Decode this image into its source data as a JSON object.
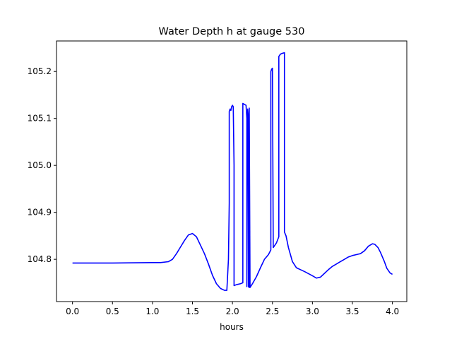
{
  "chart_data": {
    "type": "line",
    "title": "Water Depth h at gauge 530",
    "xlabel": "hours",
    "ylabel": "",
    "xlim": [
      -0.2,
      4.18
    ],
    "ylim": [
      104.71,
      105.265
    ],
    "xticks": [
      0.0,
      0.5,
      1.0,
      1.5,
      2.0,
      2.5,
      3.0,
      3.5,
      4.0
    ],
    "xtick_labels": [
      "0.0",
      "0.5",
      "1.0",
      "1.5",
      "2.0",
      "2.5",
      "3.0",
      "3.5",
      "4.0"
    ],
    "yticks": [
      104.8,
      104.9,
      105.0,
      105.1,
      105.2
    ],
    "ytick_labels": [
      "104.8",
      "104.9",
      "105.0",
      "105.1",
      "105.2"
    ],
    "grid": false,
    "series": [
      {
        "color": "#0000ff",
        "x": [
          0.0,
          0.5,
          1.0,
          1.1,
          1.2,
          1.25,
          1.3,
          1.35,
          1.4,
          1.45,
          1.5,
          1.55,
          1.6,
          1.65,
          1.7,
          1.75,
          1.8,
          1.85,
          1.9,
          1.93,
          1.95,
          1.96,
          1.96,
          1.97,
          1.98,
          1.99,
          2.0,
          2.01,
          2.02,
          2.02,
          2.05,
          2.1,
          2.13,
          2.13,
          2.15,
          2.17,
          2.18,
          2.18,
          2.19,
          2.2,
          2.2,
          2.21,
          2.21,
          2.22,
          2.25,
          2.3,
          2.35,
          2.4,
          2.45,
          2.48,
          2.48,
          2.49,
          2.5,
          2.51,
          2.51,
          2.55,
          2.58,
          2.58,
          2.6,
          2.63,
          2.65,
          2.65,
          2.67,
          2.7,
          2.75,
          2.8,
          2.85,
          2.9,
          3.0,
          3.05,
          3.1,
          3.15,
          3.2,
          3.25,
          3.3,
          3.35,
          3.4,
          3.45,
          3.5,
          3.55,
          3.6,
          3.65,
          3.7,
          3.75,
          3.78,
          3.82,
          3.85,
          3.9,
          3.93,
          3.97,
          4.0
        ],
        "y": [
          104.792,
          104.792,
          104.793,
          104.793,
          104.795,
          104.8,
          104.812,
          104.826,
          104.84,
          104.852,
          104.855,
          104.848,
          104.83,
          104.812,
          104.79,
          104.766,
          104.748,
          104.738,
          104.734,
          104.734,
          104.8,
          104.92,
          105.115,
          105.12,
          105.117,
          105.125,
          105.128,
          105.125,
          105.0,
          104.744,
          104.746,
          104.748,
          104.75,
          105.132,
          105.13,
          105.128,
          105.1,
          104.742,
          105.12,
          105.1,
          104.742,
          104.74,
          105.122,
          104.74,
          104.748,
          104.763,
          104.782,
          104.8,
          104.81,
          104.82,
          105.2,
          105.205,
          105.207,
          104.825,
          104.825,
          104.835,
          104.848,
          105.232,
          105.237,
          105.239,
          105.24,
          104.858,
          104.85,
          104.825,
          104.795,
          104.782,
          104.778,
          104.774,
          104.765,
          104.76,
          104.762,
          104.77,
          104.778,
          104.785,
          104.79,
          104.795,
          104.8,
          104.805,
          104.808,
          104.81,
          104.812,
          104.818,
          104.828,
          104.833,
          104.832,
          104.825,
          104.815,
          104.795,
          104.781,
          104.771,
          104.768
        ]
      }
    ]
  }
}
